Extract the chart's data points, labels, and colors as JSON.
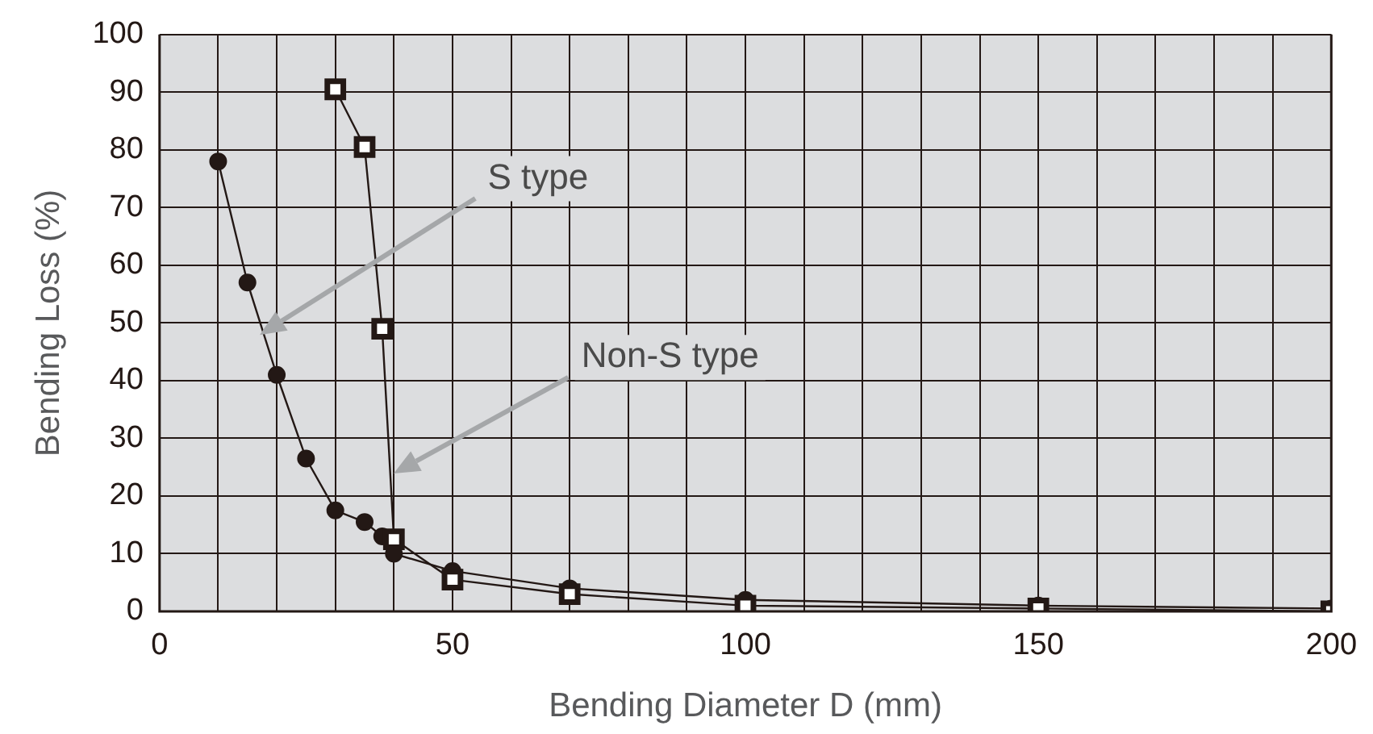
{
  "chart_data": {
    "type": "line",
    "xlabel": "Bending Diameter D (mm)",
    "ylabel": "Bending Loss (%)",
    "xlim": [
      0,
      200
    ],
    "ylim": [
      0,
      100
    ],
    "xticks": [
      0,
      {
        "value": 10,
        "label": null
      },
      {
        "value": 20,
        "label": null
      },
      {
        "value": 30,
        "label": null
      },
      {
        "value": 40,
        "label": null
      },
      50,
      {
        "value": 60,
        "label": null
      },
      {
        "value": 70,
        "label": null
      },
      {
        "value": 80,
        "label": null
      },
      {
        "value": 90,
        "label": null
      },
      100,
      {
        "value": 110,
        "label": null
      },
      {
        "value": 120,
        "label": null
      },
      {
        "value": 130,
        "label": null
      },
      {
        "value": 140,
        "label": null
      },
      150,
      {
        "value": 160,
        "label": null
      },
      {
        "value": 170,
        "label": null
      },
      {
        "value": 180,
        "label": null
      },
      {
        "value": 190,
        "label": null
      },
      200
    ],
    "yticks": [
      0,
      10,
      20,
      30,
      40,
      50,
      60,
      70,
      80,
      90,
      100
    ],
    "grid": true,
    "legend": false,
    "series": [
      {
        "color": "#231815",
        "marker": "circle",
        "x": [
          10,
          15,
          20,
          25,
          30,
          35,
          38,
          40,
          50,
          70,
          100,
          150,
          200
        ],
        "values": [
          78,
          57,
          41,
          26.5,
          17.5,
          15.5,
          13,
          10,
          7,
          4,
          2,
          1,
          0.5
        ]
      },
      {
        "color": "#231815",
        "marker": "square",
        "x": [
          30,
          35,
          38,
          40,
          50,
          70,
          100,
          150,
          200
        ],
        "values": [
          90.5,
          80.5,
          49,
          12.5,
          5.5,
          3,
          1,
          0.5,
          0
        ]
      }
    ],
    "annotations": [
      "S type",
      "Non-S type"
    ]
  }
}
